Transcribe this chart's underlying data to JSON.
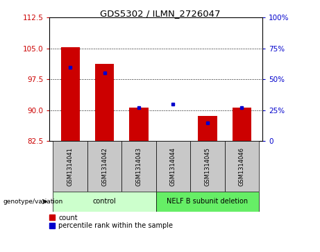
{
  "title": "GDS5302 / ILMN_2726047",
  "samples": [
    "GSM1314041",
    "GSM1314042",
    "GSM1314043",
    "GSM1314044",
    "GSM1314045",
    "GSM1314046"
  ],
  "count_values": [
    105.3,
    101.2,
    90.7,
    82.5,
    88.7,
    90.7
  ],
  "percentile_values": [
    60,
    55,
    27,
    30,
    15,
    27
  ],
  "ymin": 82.5,
  "ymax": 112.5,
  "yticks": [
    82.5,
    90,
    97.5,
    105,
    112.5
  ],
  "y2min": 0,
  "y2max": 100,
  "y2ticks": [
    0,
    25,
    50,
    75,
    100
  ],
  "bar_color": "#cc0000",
  "dot_color": "#0000cc",
  "groups": [
    {
      "label": "control",
      "indices": [
        0,
        1,
        2
      ],
      "color": "#ccffcc"
    },
    {
      "label": "NELF B subunit deletion",
      "indices": [
        3,
        4,
        5
      ],
      "color": "#66ee66"
    }
  ],
  "group_label": "genotype/variation",
  "legend_count": "count",
  "legend_pct": "percentile rank within the sample",
  "bar_width": 0.55,
  "plot_bg_color": "#ffffff",
  "bar_color_red": "#cc0000",
  "dot_color_blue": "#0000cc",
  "tick_label_bg": "#c8c8c8",
  "grid_color": "#000000"
}
